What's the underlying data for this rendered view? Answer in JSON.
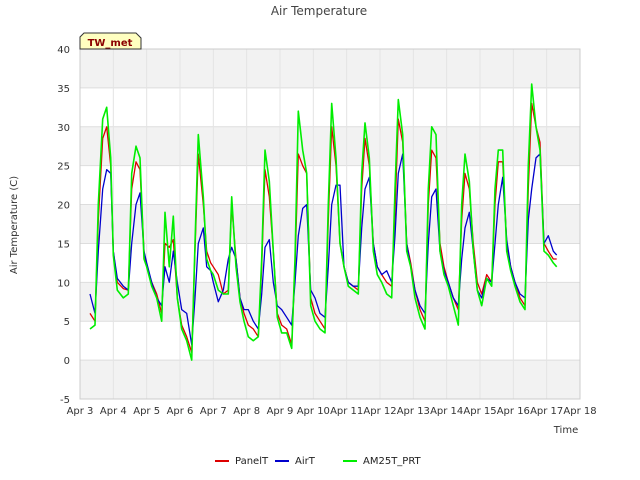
{
  "chart_data": {
    "type": "line",
    "title": "Air Temperature",
    "xlabel": "Time",
    "ylabel": "Air Temperature (C)",
    "station_label": "TW_met",
    "ylim": [
      -5,
      40
    ],
    "xlim": [
      3,
      18
    ],
    "y_ticks": [
      -5,
      0,
      5,
      10,
      15,
      20,
      25,
      30,
      35,
      40
    ],
    "x_ticks": [
      3,
      4,
      5,
      6,
      7,
      8,
      9,
      10,
      11,
      12,
      13,
      14,
      15,
      16,
      17,
      18
    ],
    "x_tick_labels": [
      "Apr 3",
      "Apr 4",
      "Apr 5",
      "Apr 6",
      "Apr 7",
      "Apr 8",
      "Apr 9",
      "Apr 10",
      "Apr 11",
      "Apr 12",
      "Apr 13",
      "Apr 14",
      "Apr 15",
      "Apr 16",
      "Apr 17",
      "Apr 18"
    ],
    "grid": true,
    "legend_position": "bottom-center",
    "series": [
      {
        "name": "PanelT",
        "color": "#dd0000",
        "x": [
          3.3,
          3.45,
          3.55,
          3.68,
          3.8,
          3.92,
          4.0,
          4.12,
          4.3,
          4.45,
          4.55,
          4.68,
          4.8,
          4.92,
          5.0,
          5.15,
          5.3,
          5.45,
          5.55,
          5.68,
          5.8,
          5.92,
          6.05,
          6.2,
          6.35,
          6.45,
          6.55,
          6.7,
          6.8,
          6.92,
          7.0,
          7.15,
          7.3,
          7.45,
          7.55,
          7.68,
          7.8,
          7.92,
          8.05,
          8.2,
          8.35,
          8.45,
          8.55,
          8.68,
          8.8,
          8.92,
          9.05,
          9.2,
          9.35,
          9.45,
          9.55,
          9.68,
          9.8,
          9.92,
          10.05,
          10.2,
          10.35,
          10.45,
          10.55,
          10.68,
          10.8,
          10.92,
          11.05,
          11.2,
          11.35,
          11.45,
          11.55,
          11.68,
          11.8,
          11.92,
          12.05,
          12.2,
          12.35,
          12.45,
          12.55,
          12.68,
          12.8,
          12.92,
          13.05,
          13.2,
          13.35,
          13.45,
          13.55,
          13.68,
          13.8,
          13.92,
          14.05,
          14.2,
          14.35,
          14.45,
          14.55,
          14.68,
          14.8,
          14.92,
          15.05,
          15.2,
          15.35,
          15.45,
          15.55,
          15.68,
          15.8,
          15.92,
          16.05,
          16.2,
          16.35,
          16.45,
          16.55,
          16.68,
          16.8,
          16.92,
          17.05,
          17.2,
          17.3
        ],
        "y": [
          6.0,
          5.0,
          18.0,
          28.5,
          30.0,
          25.0,
          14.0,
          10.0,
          9.2,
          9.0,
          22.0,
          25.5,
          24.5,
          14.0,
          12.0,
          10.0,
          8.5,
          6.0,
          15.0,
          14.5,
          15.5,
          8.0,
          4.5,
          3.0,
          1.0,
          14.0,
          26.5,
          20.0,
          14.0,
          12.5,
          12.0,
          11.0,
          8.5,
          9.0,
          20.0,
          13.0,
          8.0,
          6.0,
          4.5,
          4.0,
          3.0,
          12.0,
          24.5,
          21.0,
          14.0,
          6.0,
          4.5,
          4.0,
          2.0,
          12.0,
          26.5,
          25.0,
          24.0,
          8.0,
          6.0,
          5.0,
          4.0,
          18.0,
          30.0,
          25.0,
          15.0,
          12.0,
          10.0,
          9.5,
          9.0,
          22.0,
          28.5,
          25.0,
          15.0,
          12.0,
          11.0,
          10.0,
          9.5,
          19.0,
          31.0,
          28.0,
          15.0,
          12.5,
          9.0,
          6.5,
          5.0,
          20.0,
          27.0,
          26.0,
          15.0,
          12.0,
          10.0,
          8.0,
          6.5,
          18.0,
          24.0,
          22.0,
          15.0,
          10.0,
          8.5,
          11.0,
          10.0,
          20.0,
          25.5,
          25.5,
          15.0,
          12.0,
          10.0,
          8.0,
          7.0,
          22.0,
          33.0,
          30.0,
          28.0,
          15.0,
          14.0,
          13.0,
          13.0
        ]
      },
      {
        "name": "AirT",
        "color": "#0000cc",
        "x": [
          3.3,
          3.45,
          3.55,
          3.68,
          3.8,
          3.92,
          4.0,
          4.12,
          4.3,
          4.45,
          4.55,
          4.68,
          4.8,
          4.92,
          5.0,
          5.15,
          5.3,
          5.45,
          5.55,
          5.68,
          5.8,
          5.92,
          6.05,
          6.2,
          6.35,
          6.45,
          6.55,
          6.7,
          6.8,
          6.92,
          7.0,
          7.15,
          7.3,
          7.45,
          7.55,
          7.68,
          7.8,
          7.92,
          8.05,
          8.2,
          8.35,
          8.45,
          8.55,
          8.68,
          8.8,
          8.92,
          9.05,
          9.2,
          9.35,
          9.45,
          9.55,
          9.68,
          9.8,
          9.92,
          10.05,
          10.2,
          10.35,
          10.45,
          10.55,
          10.68,
          10.8,
          10.92,
          11.05,
          11.2,
          11.35,
          11.45,
          11.55,
          11.68,
          11.8,
          11.92,
          12.05,
          12.2,
          12.35,
          12.45,
          12.55,
          12.68,
          12.8,
          12.92,
          13.05,
          13.2,
          13.35,
          13.45,
          13.55,
          13.68,
          13.8,
          13.92,
          14.05,
          14.2,
          14.35,
          14.45,
          14.55,
          14.68,
          14.8,
          14.92,
          15.05,
          15.2,
          15.35,
          15.45,
          15.55,
          15.68,
          15.8,
          15.92,
          16.05,
          16.2,
          16.35,
          16.45,
          16.55,
          16.68,
          16.8,
          16.92,
          17.05,
          17.2,
          17.3
        ],
        "y": [
          8.5,
          6.0,
          14.0,
          22.0,
          24.5,
          24.0,
          14.0,
          10.5,
          9.5,
          9.0,
          15.0,
          20.0,
          21.5,
          14.0,
          12.5,
          10.0,
          8.0,
          7.0,
          12.0,
          10.0,
          14.0,
          10.0,
          6.5,
          6.0,
          2.0,
          8.0,
          15.0,
          17.0,
          12.0,
          11.5,
          10.0,
          7.5,
          9.0,
          13.0,
          14.5,
          13.0,
          8.0,
          6.5,
          6.5,
          5.0,
          4.0,
          8.5,
          14.5,
          15.5,
          10.0,
          7.0,
          6.5,
          5.5,
          4.5,
          10.0,
          16.0,
          19.5,
          20.0,
          9.0,
          8.0,
          6.0,
          5.5,
          12.0,
          20.0,
          22.5,
          22.5,
          12.0,
          10.0,
          9.5,
          9.5,
          17.0,
          22.0,
          23.5,
          15.0,
          12.0,
          11.0,
          11.5,
          10.0,
          16.0,
          24.0,
          26.5,
          15.0,
          12.0,
          9.0,
          7.0,
          6.0,
          15.0,
          21.0,
          22.0,
          14.0,
          11.5,
          10.0,
          8.0,
          7.0,
          13.0,
          17.0,
          19.0,
          14.0,
          9.0,
          8.0,
          10.5,
          10.0,
          15.0,
          20.0,
          23.5,
          15.5,
          12.0,
          10.0,
          8.5,
          8.0,
          18.0,
          22.0,
          26.0,
          26.5,
          15.0,
          16.0,
          14.0,
          13.5
        ]
      },
      {
        "name": "AM25T_PRT",
        "color": "#00ee00",
        "x": [
          3.3,
          3.45,
          3.55,
          3.68,
          3.8,
          3.92,
          4.0,
          4.12,
          4.3,
          4.45,
          4.55,
          4.68,
          4.8,
          4.92,
          5.0,
          5.15,
          5.3,
          5.45,
          5.55,
          5.68,
          5.8,
          5.92,
          6.05,
          6.2,
          6.35,
          6.45,
          6.55,
          6.7,
          6.8,
          6.92,
          7.0,
          7.15,
          7.3,
          7.45,
          7.55,
          7.68,
          7.8,
          7.92,
          8.05,
          8.2,
          8.35,
          8.45,
          8.55,
          8.68,
          8.8,
          8.92,
          9.05,
          9.2,
          9.35,
          9.45,
          9.55,
          9.68,
          9.8,
          9.92,
          10.05,
          10.2,
          10.35,
          10.45,
          10.55,
          10.68,
          10.8,
          10.92,
          11.05,
          11.2,
          11.35,
          11.45,
          11.55,
          11.68,
          11.8,
          11.92,
          12.05,
          12.2,
          12.35,
          12.45,
          12.55,
          12.68,
          12.8,
          12.92,
          13.05,
          13.2,
          13.35,
          13.45,
          13.55,
          13.68,
          13.8,
          13.92,
          14.05,
          14.2,
          14.35,
          14.45,
          14.55,
          14.68,
          14.8,
          14.92,
          15.05,
          15.2,
          15.35,
          15.45,
          15.55,
          15.68,
          15.8,
          15.92,
          16.05,
          16.2,
          16.35,
          16.45,
          16.55,
          16.68,
          16.8,
          16.92,
          17.05,
          17.2,
          17.3
        ],
        "y": [
          4.0,
          4.5,
          20.0,
          31.0,
          32.5,
          26.0,
          13.5,
          9.0,
          8.0,
          8.5,
          24.0,
          27.5,
          26.0,
          13.0,
          12.0,
          9.5,
          8.0,
          5.0,
          19.0,
          12.0,
          18.5,
          8.0,
          4.0,
          2.5,
          0.0,
          15.0,
          29.0,
          21.0,
          13.0,
          11.5,
          11.0,
          9.0,
          8.5,
          8.5,
          21.0,
          12.0,
          7.5,
          5.0,
          3.0,
          2.5,
          3.0,
          13.0,
          27.0,
          23.0,
          14.0,
          5.5,
          3.5,
          3.5,
          1.5,
          13.0,
          32.0,
          27.0,
          24.0,
          7.0,
          5.0,
          4.0,
          3.5,
          20.0,
          33.0,
          26.0,
          15.0,
          12.0,
          9.5,
          9.0,
          8.5,
          24.0,
          30.5,
          26.0,
          14.0,
          11.0,
          10.0,
          8.5,
          8.0,
          22.0,
          33.5,
          29.0,
          14.0,
          12.0,
          8.0,
          5.5,
          4.0,
          22.0,
          30.0,
          29.0,
          14.0,
          11.0,
          9.5,
          7.0,
          4.5,
          20.0,
          26.5,
          23.0,
          14.0,
          9.0,
          7.0,
          10.5,
          9.5,
          22.0,
          27.0,
          27.0,
          14.0,
          11.5,
          9.5,
          7.5,
          6.5,
          25.0,
          35.5,
          30.0,
          27.0,
          14.0,
          13.5,
          12.5,
          12.0
        ]
      }
    ]
  }
}
